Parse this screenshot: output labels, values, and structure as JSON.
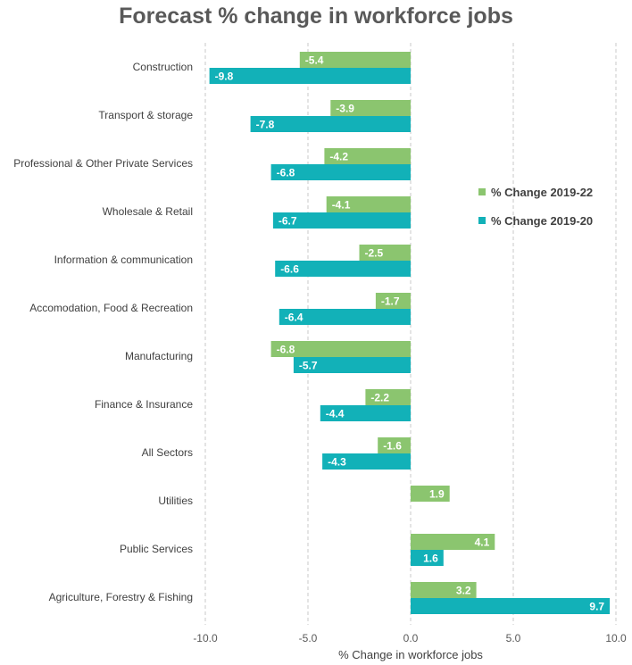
{
  "chart_data": {
    "type": "bar",
    "orientation": "horizontal",
    "title": "Forecast % change in workforce jobs",
    "xlabel": "% Change in workforce jobs",
    "ylabel": "",
    "xlim": [
      -10,
      10
    ],
    "x_ticks": [
      "-10.0",
      "-5.0",
      "0.0",
      "5.0",
      "10.0"
    ],
    "grid": "vertical dashed",
    "legend_position": "right",
    "categories": [
      "Construction",
      "Transport & storage",
      "Professional & Other Private Services",
      "Wholesale & Retail",
      "Information & communication",
      "Accomodation, Food & Recreation",
      "Manufacturing",
      "Finance & Insurance",
      "All Sectors",
      "Utilities",
      "Public Services",
      "Agriculture, Forestry & Fishing"
    ],
    "series": [
      {
        "name": "% Change 2019-22",
        "color": "#8BC56F",
        "values": [
          -5.4,
          -3.9,
          -4.2,
          -4.1,
          -2.5,
          -1.7,
          -6.8,
          -2.2,
          -1.6,
          1.9,
          4.1,
          3.2
        ],
        "labels": [
          "-5.4",
          "-3.9",
          "-4.2",
          "-4.1",
          "-2.5",
          "-1.7",
          "-6.8",
          "-2.2",
          "-1.6",
          "1.9",
          "4.1",
          "3.2"
        ]
      },
      {
        "name": "% Change 2019-20",
        "color": "#12B1B8",
        "values": [
          -9.8,
          -7.8,
          -6.8,
          -6.7,
          -6.6,
          -6.4,
          -5.7,
          -4.4,
          -4.3,
          null,
          1.6,
          9.7
        ],
        "labels": [
          "-9.8",
          "-7.8",
          "-6.8",
          "-6.7",
          "-6.6",
          "-6.4",
          "-5.7",
          "-4.4",
          "-4.3",
          "",
          "1.6",
          "9.7"
        ]
      }
    ]
  }
}
